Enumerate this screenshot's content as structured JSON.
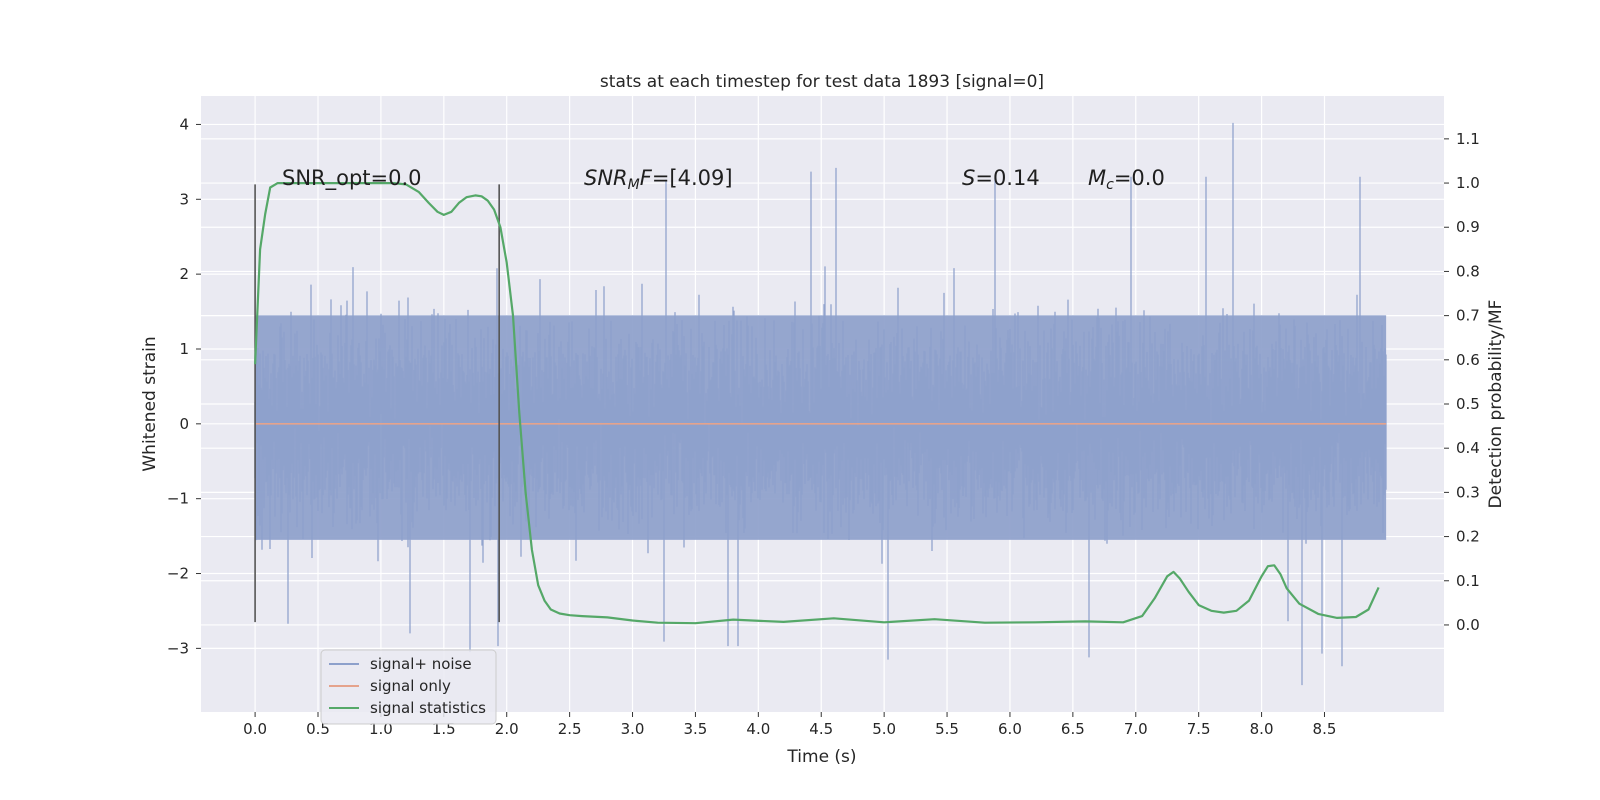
{
  "chart_data": {
    "type": "line",
    "title": "stats at each timestep for test data 1893 [signal=0]",
    "xlabel": "Time (s)",
    "ylabel": "Whitened strain",
    "y2label": "Detection probability/MF",
    "xlim": [
      -0.43,
      9.45
    ],
    "ylim": [
      -3.85,
      4.38
    ],
    "y2lim": [
      -0.197,
      1.197
    ],
    "x_ticks": [
      0.0,
      0.5,
      1.0,
      1.5,
      2.0,
      2.5,
      3.0,
      3.5,
      4.0,
      4.5,
      5.0,
      5.5,
      6.0,
      6.5,
      7.0,
      7.5,
      8.0,
      8.5
    ],
    "x_tick_labels": [
      "0.0",
      "0.5",
      "1.0",
      "1.5",
      "2.0",
      "2.5",
      "3.0",
      "3.5",
      "4.0",
      "4.5",
      "5.0",
      "5.5",
      "6.0",
      "6.5",
      "7.0",
      "7.5",
      "8.0",
      "8.5"
    ],
    "y_ticks": [
      4,
      3,
      2,
      1,
      0,
      -1,
      -2,
      -3
    ],
    "y_tick_labels": [
      "4",
      "3",
      "2",
      "1",
      "0",
      "−1",
      "−2",
      "−3"
    ],
    "y2_ticks": [
      1.1,
      1.0,
      0.9,
      0.8,
      0.7,
      0.6,
      0.5,
      0.4,
      0.3,
      0.2,
      0.1,
      0.0
    ],
    "y2_tick_labels": [
      "1.1",
      "1.0",
      "0.9",
      "0.8",
      "0.7",
      "0.6",
      "0.5",
      "0.4",
      "0.3",
      "0.2",
      "0.1",
      "0.0"
    ],
    "annotations": {
      "snr_opt": "SNR_opt=0.0",
      "snr_mf_base": "SNR",
      "snr_mf_sub": "M",
      "snr_mf_tail": "F",
      "snr_mf_value": "=[4.09]",
      "s_label": "S",
      "s_value": "=0.14",
      "mc_base": "M",
      "mc_sub": "c",
      "mc_value": "=0.0"
    },
    "window_markers": {
      "x": [
        0.0,
        1.94
      ],
      "y_range": [
        -2.65,
        3.2
      ]
    },
    "series": [
      {
        "name": "signal+ noise",
        "axis": "left",
        "color": "#8da0cb",
        "style": "noise",
        "x_range": [
          0.0,
          8.99
        ],
        "samples": 9000,
        "typical_range": [
          -1.55,
          1.45
        ],
        "max_value": 4.02,
        "min_value": -3.49,
        "peaks": [
          {
            "x": 7.77,
            "y": 4.02
          },
          {
            "x": 4.62,
            "y": 3.42
          },
          {
            "x": 4.42,
            "y": 3.37
          },
          {
            "x": 7.56,
            "y": 3.3
          },
          {
            "x": 6.96,
            "y": 3.3
          },
          {
            "x": 5.88,
            "y": 3.28
          },
          {
            "x": 3.27,
            "y": 3.26
          },
          {
            "x": 8.78,
            "y": 3.3
          },
          {
            "x": 1.92,
            "y": 2.08
          },
          {
            "x": 8.32,
            "y": -3.49
          },
          {
            "x": 5.03,
            "y": -3.15
          },
          {
            "x": 6.63,
            "y": -3.12
          },
          {
            "x": 8.64,
            "y": -3.24
          },
          {
            "x": 1.71,
            "y": -3.05
          },
          {
            "x": 1.93,
            "y": -2.97
          },
          {
            "x": 3.84,
            "y": -2.97
          },
          {
            "x": 3.76,
            "y": -2.97
          },
          {
            "x": 3.25,
            "y": -2.91
          },
          {
            "x": 8.48,
            "y": -3.07
          },
          {
            "x": 0.26,
            "y": -2.67
          },
          {
            "x": 1.23,
            "y": -2.8
          }
        ]
      },
      {
        "name": "signal only",
        "axis": "left",
        "color": "#e5a38c",
        "x": [
          0.0,
          8.99
        ],
        "y": [
          0.0,
          0.0
        ]
      },
      {
        "name": "signal statistics",
        "axis": "right",
        "color": "#55a868",
        "x": [
          0.0,
          0.04,
          0.08,
          0.12,
          0.18,
          0.25,
          0.35,
          0.5,
          0.7,
          0.9,
          1.1,
          1.2,
          1.3,
          1.38,
          1.45,
          1.5,
          1.56,
          1.62,
          1.68,
          1.75,
          1.8,
          1.85,
          1.9,
          1.95,
          2.0,
          2.05,
          2.1,
          2.15,
          2.2,
          2.25,
          2.3,
          2.35,
          2.42,
          2.5,
          2.6,
          2.8,
          3.0,
          3.2,
          3.5,
          3.8,
          4.2,
          4.6,
          5.0,
          5.4,
          5.8,
          6.2,
          6.6,
          6.9,
          7.05,
          7.15,
          7.25,
          7.3,
          7.35,
          7.42,
          7.5,
          7.6,
          7.7,
          7.8,
          7.9,
          8.0,
          8.05,
          8.1,
          8.15,
          8.2,
          8.3,
          8.45,
          8.6,
          8.75,
          8.85,
          8.93
        ],
        "y": [
          0.59,
          0.85,
          0.93,
          0.99,
          1.0,
          1.0,
          1.0,
          1.0,
          1.0,
          1.0,
          1.0,
          0.997,
          0.98,
          0.955,
          0.935,
          0.928,
          0.935,
          0.955,
          0.968,
          0.972,
          0.97,
          0.96,
          0.94,
          0.9,
          0.82,
          0.7,
          0.48,
          0.3,
          0.17,
          0.09,
          0.055,
          0.035,
          0.026,
          0.022,
          0.02,
          0.017,
          0.01,
          0.005,
          0.004,
          0.012,
          0.007,
          0.015,
          0.006,
          0.013,
          0.005,
          0.006,
          0.008,
          0.006,
          0.02,
          0.06,
          0.11,
          0.12,
          0.105,
          0.075,
          0.045,
          0.032,
          0.028,
          0.032,
          0.055,
          0.11,
          0.133,
          0.135,
          0.115,
          0.083,
          0.048,
          0.025,
          0.016,
          0.018,
          0.035,
          0.085
        ]
      }
    ],
    "legend": {
      "position": "lower-left",
      "entries": [
        "signal+ noise",
        "signal only",
        "signal statistics"
      ]
    },
    "grid": true
  },
  "colors": {
    "figure_bg": "#ffffff",
    "plot_bg": "#eaeaf2",
    "grid": "#ffffff",
    "marker_line": "#555555"
  }
}
